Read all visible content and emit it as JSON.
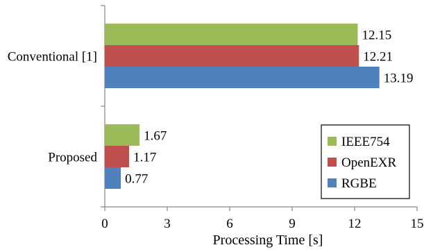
{
  "chart_data": {
    "type": "bar",
    "orientation": "horizontal",
    "categories": [
      "Proposed",
      "Conventional [1]"
    ],
    "series": [
      {
        "name": "RGBE",
        "values": [
          0.77,
          13.19
        ],
        "color": "#4f81bd"
      },
      {
        "name": "OpenEXR",
        "values": [
          1.17,
          12.21
        ],
        "color": "#c0504d"
      },
      {
        "name": "IEEE754",
        "values": [
          1.67,
          12.15
        ],
        "color": "#9bbb59"
      }
    ],
    "data_labels": {
      "Proposed": {
        "IEEE754": "1.67",
        "OpenEXR": "1.17",
        "RGBE": "0.77"
      },
      "Conventional [1]": {
        "IEEE754": "12.15",
        "OpenEXR": "12.21",
        "RGBE": "13.19"
      }
    },
    "xlabel": "Processing Time [s]",
    "ylabel": "",
    "title": "",
    "xlim": [
      0,
      15
    ],
    "xticks": [
      0,
      3,
      6,
      9,
      12,
      15
    ],
    "xtick_labels": [
      "0",
      "3",
      "6",
      "9",
      "12",
      "15"
    ],
    "grid": false,
    "legend": {
      "position": "bottom-right",
      "entries": [
        "IEEE754",
        "OpenEXR",
        "RGBE"
      ]
    }
  }
}
